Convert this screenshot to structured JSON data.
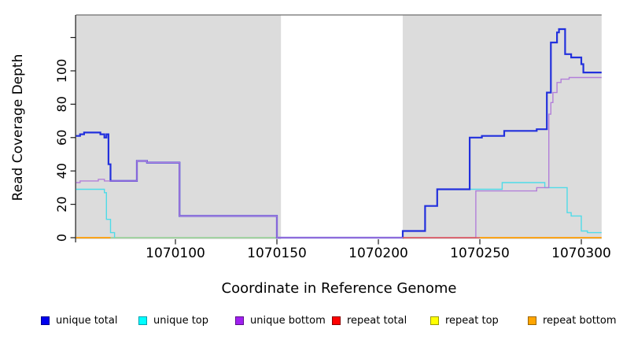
{
  "figure": {
    "panel_background": "#dcdcdc",
    "gap_background": "#ffffff",
    "top_border_color": "#6e6e6e",
    "axis_color": "#1a1a1a"
  },
  "chart_data": {
    "type": "line",
    "step": true,
    "title": "",
    "xlabel": "Coordinate in Reference Genome",
    "ylabel": "Read Coverage Depth",
    "xlim": [
      1070051,
      1070310
    ],
    "ylim": [
      0,
      133
    ],
    "x_ticks": [
      1070100,
      1070150,
      1070200,
      1070250,
      1070300
    ],
    "y_ticks": [
      0,
      20,
      40,
      60,
      80,
      100
    ],
    "y_ticks_unlabeled": [
      120
    ],
    "grid": false,
    "legend_position": "bottom",
    "background_mask": {
      "panel_color": "#dcdcdc",
      "gap_color": "#ffffff",
      "gray_regions": [
        [
          1070051,
          1070152
        ],
        [
          1070212,
          1070310
        ]
      ]
    },
    "series": [
      {
        "name": "unlabeled_baseline",
        "legend_label": null,
        "color": "#8fce8f",
        "line_width": 1.4,
        "segments": [
          [
            [
              1070068,
              0
            ],
            [
              1070152,
              0
            ]
          ]
        ]
      },
      {
        "name": "unique_top",
        "legend_label": "unique top",
        "color": "#4fdbe8",
        "line_width": 1.4,
        "segments": [
          [
            [
              1070051,
              29
            ],
            [
              1070065,
              27
            ],
            [
              1070066,
              11
            ],
            [
              1070068,
              3
            ],
            [
              1070070,
              0
            ]
          ],
          [
            [
              1070212,
              4
            ],
            [
              1070223,
              19
            ],
            [
              1070229,
              29
            ],
            [
              1070261,
              33
            ],
            [
              1070282,
              30
            ],
            [
              1070293,
              15
            ],
            [
              1070295,
              13
            ],
            [
              1070300,
              4
            ],
            [
              1070303,
              3
            ],
            [
              1070310,
              3
            ]
          ]
        ]
      },
      {
        "name": "unique_total",
        "legend_label": "unique total",
        "color": "#2230dd",
        "line_width": 2.2,
        "segments": [
          [
            [
              1070051,
              61
            ],
            [
              1070053,
              62
            ],
            [
              1070055,
              63
            ],
            [
              1070063,
              62
            ],
            [
              1070065,
              60
            ],
            [
              1070066,
              62
            ],
            [
              1070067,
              44
            ],
            [
              1070068,
              34
            ],
            [
              1070081,
              46
            ],
            [
              1070086,
              45
            ],
            [
              1070102,
              13
            ],
            [
              1070150,
              0
            ],
            [
              1070212,
              4
            ],
            [
              1070223,
              19
            ],
            [
              1070229,
              29
            ],
            [
              1070245,
              60
            ],
            [
              1070251,
              61
            ],
            [
              1070262,
              64
            ],
            [
              1070278,
              65
            ],
            [
              1070283,
              87
            ],
            [
              1070285,
              117
            ],
            [
              1070288,
              123
            ],
            [
              1070289,
              125
            ],
            [
              1070292,
              110
            ],
            [
              1070295,
              108
            ],
            [
              1070300,
              104
            ],
            [
              1070301,
              99
            ],
            [
              1070310,
              99
            ]
          ]
        ]
      },
      {
        "name": "unique_bottom",
        "legend_label": "unique bottom",
        "color": "#b27fd9",
        "line_width": 1.4,
        "segments": [
          [
            [
              1070051,
              33
            ],
            [
              1070053,
              34
            ],
            [
              1070062,
              35
            ],
            [
              1070065,
              34
            ],
            [
              1070068,
              34
            ],
            [
              1070081,
              46
            ],
            [
              1070086,
              45
            ],
            [
              1070102,
              13
            ],
            [
              1070150,
              0
            ],
            [
              1070248,
              28
            ],
            [
              1070278,
              30
            ],
            [
              1070284,
              74
            ],
            [
              1070285,
              81
            ],
            [
              1070286,
              87
            ],
            [
              1070288,
              93
            ],
            [
              1070290,
              95
            ],
            [
              1070294,
              96
            ],
            [
              1070310,
              96
            ]
          ]
        ]
      },
      {
        "name": "repeat_total",
        "legend_label": "repeat total",
        "color": "#e05050",
        "line_width": 1.4,
        "segments": [
          [
            [
              1070212,
              0
            ],
            [
              1070250,
              0
            ]
          ]
        ]
      },
      {
        "name": "repeat_top",
        "legend_label": "repeat top",
        "color": "#ffff00",
        "line_width": 1.4,
        "segments": []
      },
      {
        "name": "repeat_bottom",
        "legend_label": "repeat bottom",
        "color": "#ff9c00",
        "line_width": 1.8,
        "segments": [
          [
            [
              1070051,
              0
            ],
            [
              1070068,
              0
            ]
          ],
          [
            [
              1070250,
              0
            ],
            [
              1070310,
              0
            ]
          ]
        ]
      }
    ]
  },
  "legend": {
    "items": [
      {
        "label": "unique total",
        "fill": "#0000ee",
        "border": "#000090"
      },
      {
        "label": "unique top",
        "fill": "#00ffff",
        "border": "#00a0b0"
      },
      {
        "label": "unique bottom",
        "fill": "#a020f0",
        "border": "#5c0f8b"
      },
      {
        "label": "repeat total",
        "fill": "#ff0000",
        "border": "#8b0000"
      },
      {
        "label": "repeat top",
        "fill": "#ffff00",
        "border": "#9a9a00"
      },
      {
        "label": "repeat bottom",
        "fill": "#ffa500",
        "border": "#9a6400"
      }
    ]
  }
}
